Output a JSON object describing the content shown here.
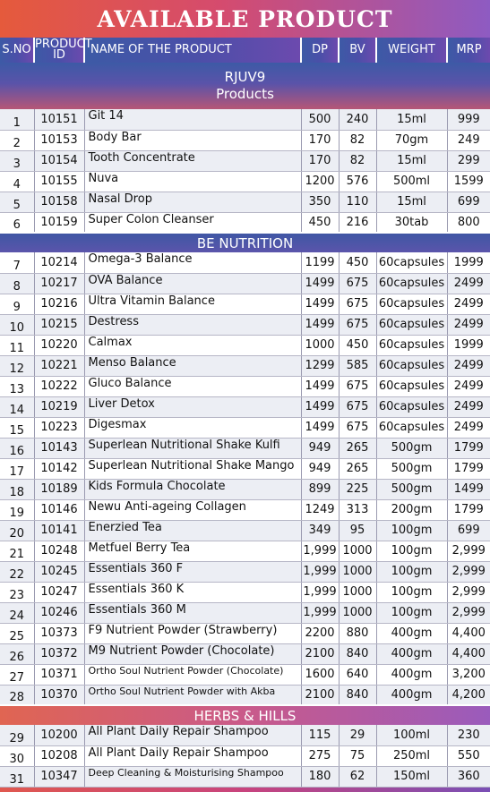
{
  "title": "AVAILABLE PRODUCT",
  "headers": {
    "sno": "S.NO",
    "pid1": "PRODUCT",
    "pid2": "ID",
    "name": "NAME OF THE PRODUCT",
    "dp": "DP",
    "bv": "BV",
    "weight": "WEIGHT",
    "mrp": "MRP"
  },
  "sections": [
    {
      "title": "RJUV9",
      "subtitle": "Products",
      "rows": [
        {
          "sno": "1",
          "id": "10151",
          "name": "Git 14",
          "dp": "500",
          "bv": "240",
          "weight": "15ml",
          "mrp": "999"
        },
        {
          "sno": "2",
          "id": "10153",
          "name": "Body Bar",
          "dp": "170",
          "bv": "82",
          "weight": "70gm",
          "mrp": "249"
        },
        {
          "sno": "3",
          "id": "10154",
          "name": "Tooth Concentrate",
          "dp": "170",
          "bv": "82",
          "weight": "15ml",
          "mrp": "299"
        },
        {
          "sno": "4",
          "id": "10155",
          "name": "Nuva",
          "dp": "1200",
          "bv": "576",
          "weight": "500ml",
          "mrp": "1599"
        },
        {
          "sno": "5",
          "id": "10158",
          "name": "Nasal Drop",
          "dp": "350",
          "bv": "110",
          "weight": "15ml",
          "mrp": "699"
        },
        {
          "sno": "6",
          "id": "10159",
          "name": "Super Colon Cleanser",
          "dp": "450",
          "bv": "216",
          "weight": "30tab",
          "mrp": "800"
        }
      ]
    },
    {
      "title": "BE NUTRITION",
      "rows": [
        {
          "sno": "7",
          "id": "10214",
          "name": "Omega-3 Balance",
          "dp": "1199",
          "bv": "450",
          "weight": "60capsules",
          "mrp": "1999"
        },
        {
          "sno": "8",
          "id": "10217",
          "name": "OVA Balance",
          "dp": "1499",
          "bv": "675",
          "weight": "60capsules",
          "mrp": "2499"
        },
        {
          "sno": "9",
          "id": "10216",
          "name": "Ultra Vitamin Balance",
          "dp": "1499",
          "bv": "675",
          "weight": "60capsules",
          "mrp": "2499"
        },
        {
          "sno": "10",
          "id": "10215",
          "name": "Destress",
          "dp": "1499",
          "bv": "675",
          "weight": "60capsules",
          "mrp": "2499"
        },
        {
          "sno": "11",
          "id": "10220",
          "name": "Calmax",
          "dp": "1000",
          "bv": "450",
          "weight": "60capsules",
          "mrp": "1999"
        },
        {
          "sno": "12",
          "id": "10221",
          "name": "Menso Balance",
          "dp": "1299",
          "bv": "585",
          "weight": "60capsules",
          "mrp": "2499"
        },
        {
          "sno": "13",
          "id": "10222",
          "name": "Gluco Balance",
          "dp": "1499",
          "bv": "675",
          "weight": "60capsules",
          "mrp": "2499"
        },
        {
          "sno": "14",
          "id": "10219",
          "name": "Liver Detox",
          "dp": "1499",
          "bv": "675",
          "weight": "60capsules",
          "mrp": "2499"
        },
        {
          "sno": "15",
          "id": "10223",
          "name": "Digesmax",
          "dp": "1499",
          "bv": "675",
          "weight": "60capsules",
          "mrp": "2499"
        },
        {
          "sno": "16",
          "id": "10143",
          "name": "Superlean Nutritional Shake Kulfi",
          "dp": "949",
          "bv": "265",
          "weight": "500gm",
          "mrp": "1799"
        },
        {
          "sno": "17",
          "id": "10142",
          "name": "Superlean Nutritional Shake Mango",
          "dp": "949",
          "bv": "265",
          "weight": "500gm",
          "mrp": "1799"
        },
        {
          "sno": "18",
          "id": "10189",
          "name": "Kids Formula Chocolate",
          "dp": "899",
          "bv": "225",
          "weight": "500gm",
          "mrp": "1499"
        },
        {
          "sno": "19",
          "id": "10146",
          "name": "Newu Anti-ageing Collagen",
          "dp": "1249",
          "bv": "313",
          "weight": "200gm",
          "mrp": "1799"
        },
        {
          "sno": "20",
          "id": "10141",
          "name": "Enerzied Tea",
          "dp": "349",
          "bv": "95",
          "weight": "100gm",
          "mrp": "699"
        },
        {
          "sno": "21",
          "id": "10248",
          "name": "Metfuel Berry Tea",
          "dp": "1,999",
          "bv": "1000",
          "weight": "100gm",
          "mrp": "2,999"
        },
        {
          "sno": "22",
          "id": "10245",
          "name": "Essentials 360 F",
          "dp": "1,999",
          "bv": "1000",
          "weight": "100gm",
          "mrp": "2,999"
        },
        {
          "sno": "23",
          "id": "10247",
          "name": "Essentials 360 K",
          "dp": "1,999",
          "bv": "1000",
          "weight": "100gm",
          "mrp": "2,999"
        },
        {
          "sno": "24",
          "id": "10246",
          "name": "Essentials 360 M",
          "dp": "1,999",
          "bv": "1000",
          "weight": "100gm",
          "mrp": "2,999"
        },
        {
          "sno": "25",
          "id": "10373",
          "name": "F9 Nutrient Powder (Strawberry)",
          "dp": "2200",
          "bv": "880",
          "weight": "400gm",
          "mrp": "4,400"
        },
        {
          "sno": "26",
          "id": "10372",
          "name": "M9 Nutrient Powder (Chocolate)",
          "dp": "2100",
          "bv": "840",
          "weight": "400gm",
          "mrp": "4,400"
        },
        {
          "sno": "27",
          "id": "10371",
          "name": "Ortho Soul Nutrient Powder (Chocolate)",
          "dp": "1600",
          "bv": "640",
          "weight": "400gm",
          "mrp": "3,200"
        },
        {
          "sno": "28",
          "id": "10370",
          "name": "Ortho Soul Nutrient Powder with Akba",
          "dp": "2100",
          "bv": "840",
          "weight": "400gm",
          "mrp": "4,200"
        }
      ]
    },
    {
      "title": "HERBS & HILLS",
      "rows": [
        {
          "sno": "29",
          "id": "10200",
          "name": "All Plant Daily Repair Shampoo",
          "dp": "115",
          "bv": "29",
          "weight": "100ml",
          "mrp": "230"
        },
        {
          "sno": "30",
          "id": "10208",
          "name": "All Plant Daily Repair Shampoo",
          "dp": "275",
          "bv": "75",
          "weight": "250ml",
          "mrp": "550"
        },
        {
          "sno": "31",
          "id": "10347",
          "name": "Deep Cleaning & Moisturising Shampoo",
          "dp": "180",
          "bv": "62",
          "weight": "150ml",
          "mrp": "360"
        }
      ]
    }
  ]
}
